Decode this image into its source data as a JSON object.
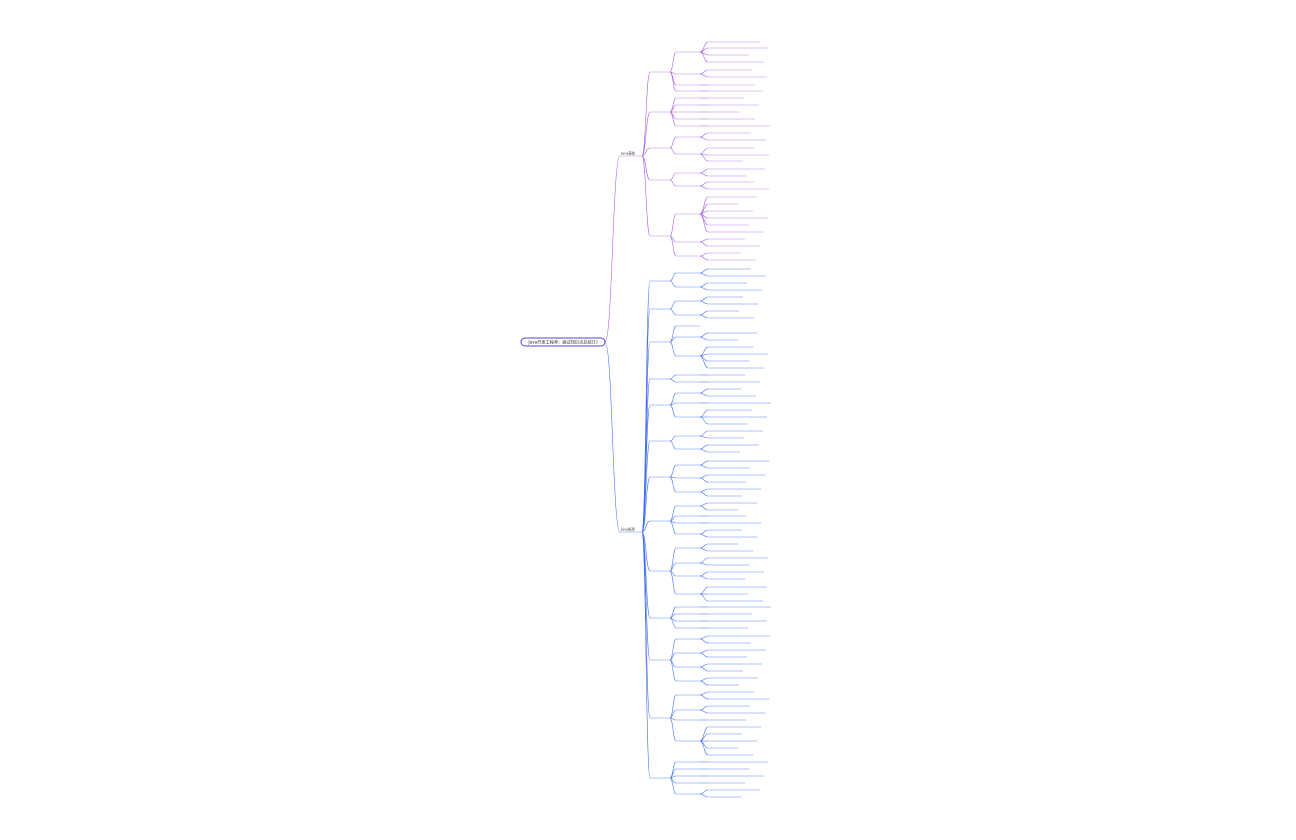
{
  "root": {
    "label": "Java开发工程师：面试知识点总结(1)"
  },
  "branches": [
    {
      "label": "Java基础",
      "color": "#a259e6"
    },
    {
      "label": "Java框架",
      "color": "#3d6cf0"
    }
  ],
  "colors": {
    "purple": "#a259e6",
    "blue": "#3d6cf0",
    "root_border": "#5b3fd6"
  }
}
